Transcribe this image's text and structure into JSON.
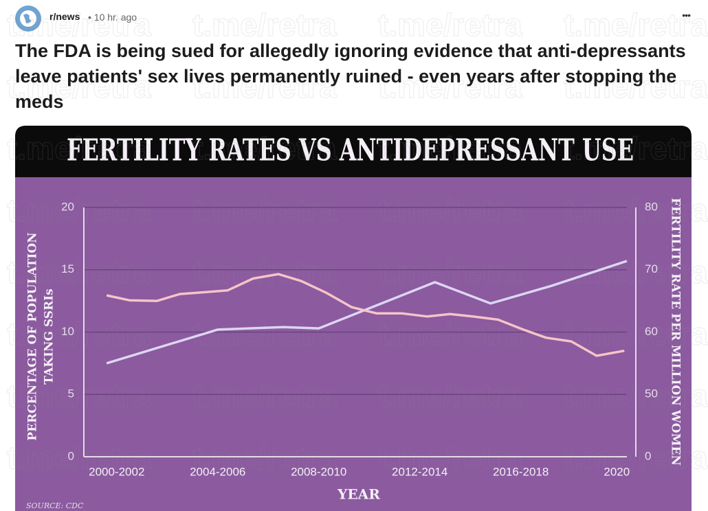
{
  "post": {
    "subreddit": "r/news",
    "time": "• 10 hr. ago",
    "menu": "•••",
    "title": "The FDA is being sued for allegedly ignoring evidence that anti-depressants leave patients' sex lives permanently ruined - even years after stopping the meds",
    "watermark": "t.me/retra"
  },
  "chart_data": {
    "type": "line",
    "title": "FERTILITY RATES VS ANTIDEPRESSANT USE",
    "x_label": "YEAR",
    "y_label": [
      "PERCENTAGE OF POPULATION",
      "TAKING SSRIs"
    ],
    "y2_label": "FERTILITY RATE PER MILLION WOMEN",
    "source": "SOURCE: CDC",
    "xlim": [
      1999.7,
      2021.2
    ],
    "xticks": [
      {
        "value": 2001,
        "label": "2000-2002"
      },
      {
        "value": 2005,
        "label": "2004-2006"
      },
      {
        "value": 2009,
        "label": "2008-2010"
      },
      {
        "value": 2013,
        "label": "2012-2014"
      },
      {
        "value": 2017,
        "label": "2016-2018"
      },
      {
        "value": 2020.8,
        "label": "2020"
      }
    ],
    "ylim": [
      0,
      20
    ],
    "yticks": [
      0,
      5,
      10,
      15,
      20
    ],
    "y2lim": [
      40,
      80
    ],
    "y2ticks": [
      50,
      60,
      70,
      80
    ],
    "y2_floor_label": "0",
    "grid": true,
    "series": [
      {
        "color": "#ddd6f2",
        "x": [
          2000.6,
          2005,
          2007.6,
          2009,
          2013.6,
          2015.8,
          2018.2,
          2021.2
        ],
        "values": [
          7.5,
          10.2,
          10.4,
          10.3,
          14,
          12.3,
          13.7,
          15.7
        ]
      },
      {
        "color": "#f6c4c8",
        "axis": "y2",
        "x": [
          2000.6,
          2001.5,
          2002.6,
          2003.5,
          2004.5,
          2005.4,
          2006.4,
          2007.4,
          2008.3,
          2009.3,
          2010.3,
          2011.3,
          2012.3,
          2013.3,
          2014.2,
          2015.1,
          2016.1,
          2017.1,
          2018,
          2019,
          2020,
          2021.1
        ],
        "values": [
          65.9,
          65.1,
          65,
          66.1,
          66.4,
          66.7,
          68.6,
          69.3,
          68.2,
          66.3,
          64,
          63,
          63,
          62.5,
          62.9,
          62.5,
          62,
          60.4,
          59.1,
          58.5,
          56.2,
          57
        ]
      }
    ]
  }
}
